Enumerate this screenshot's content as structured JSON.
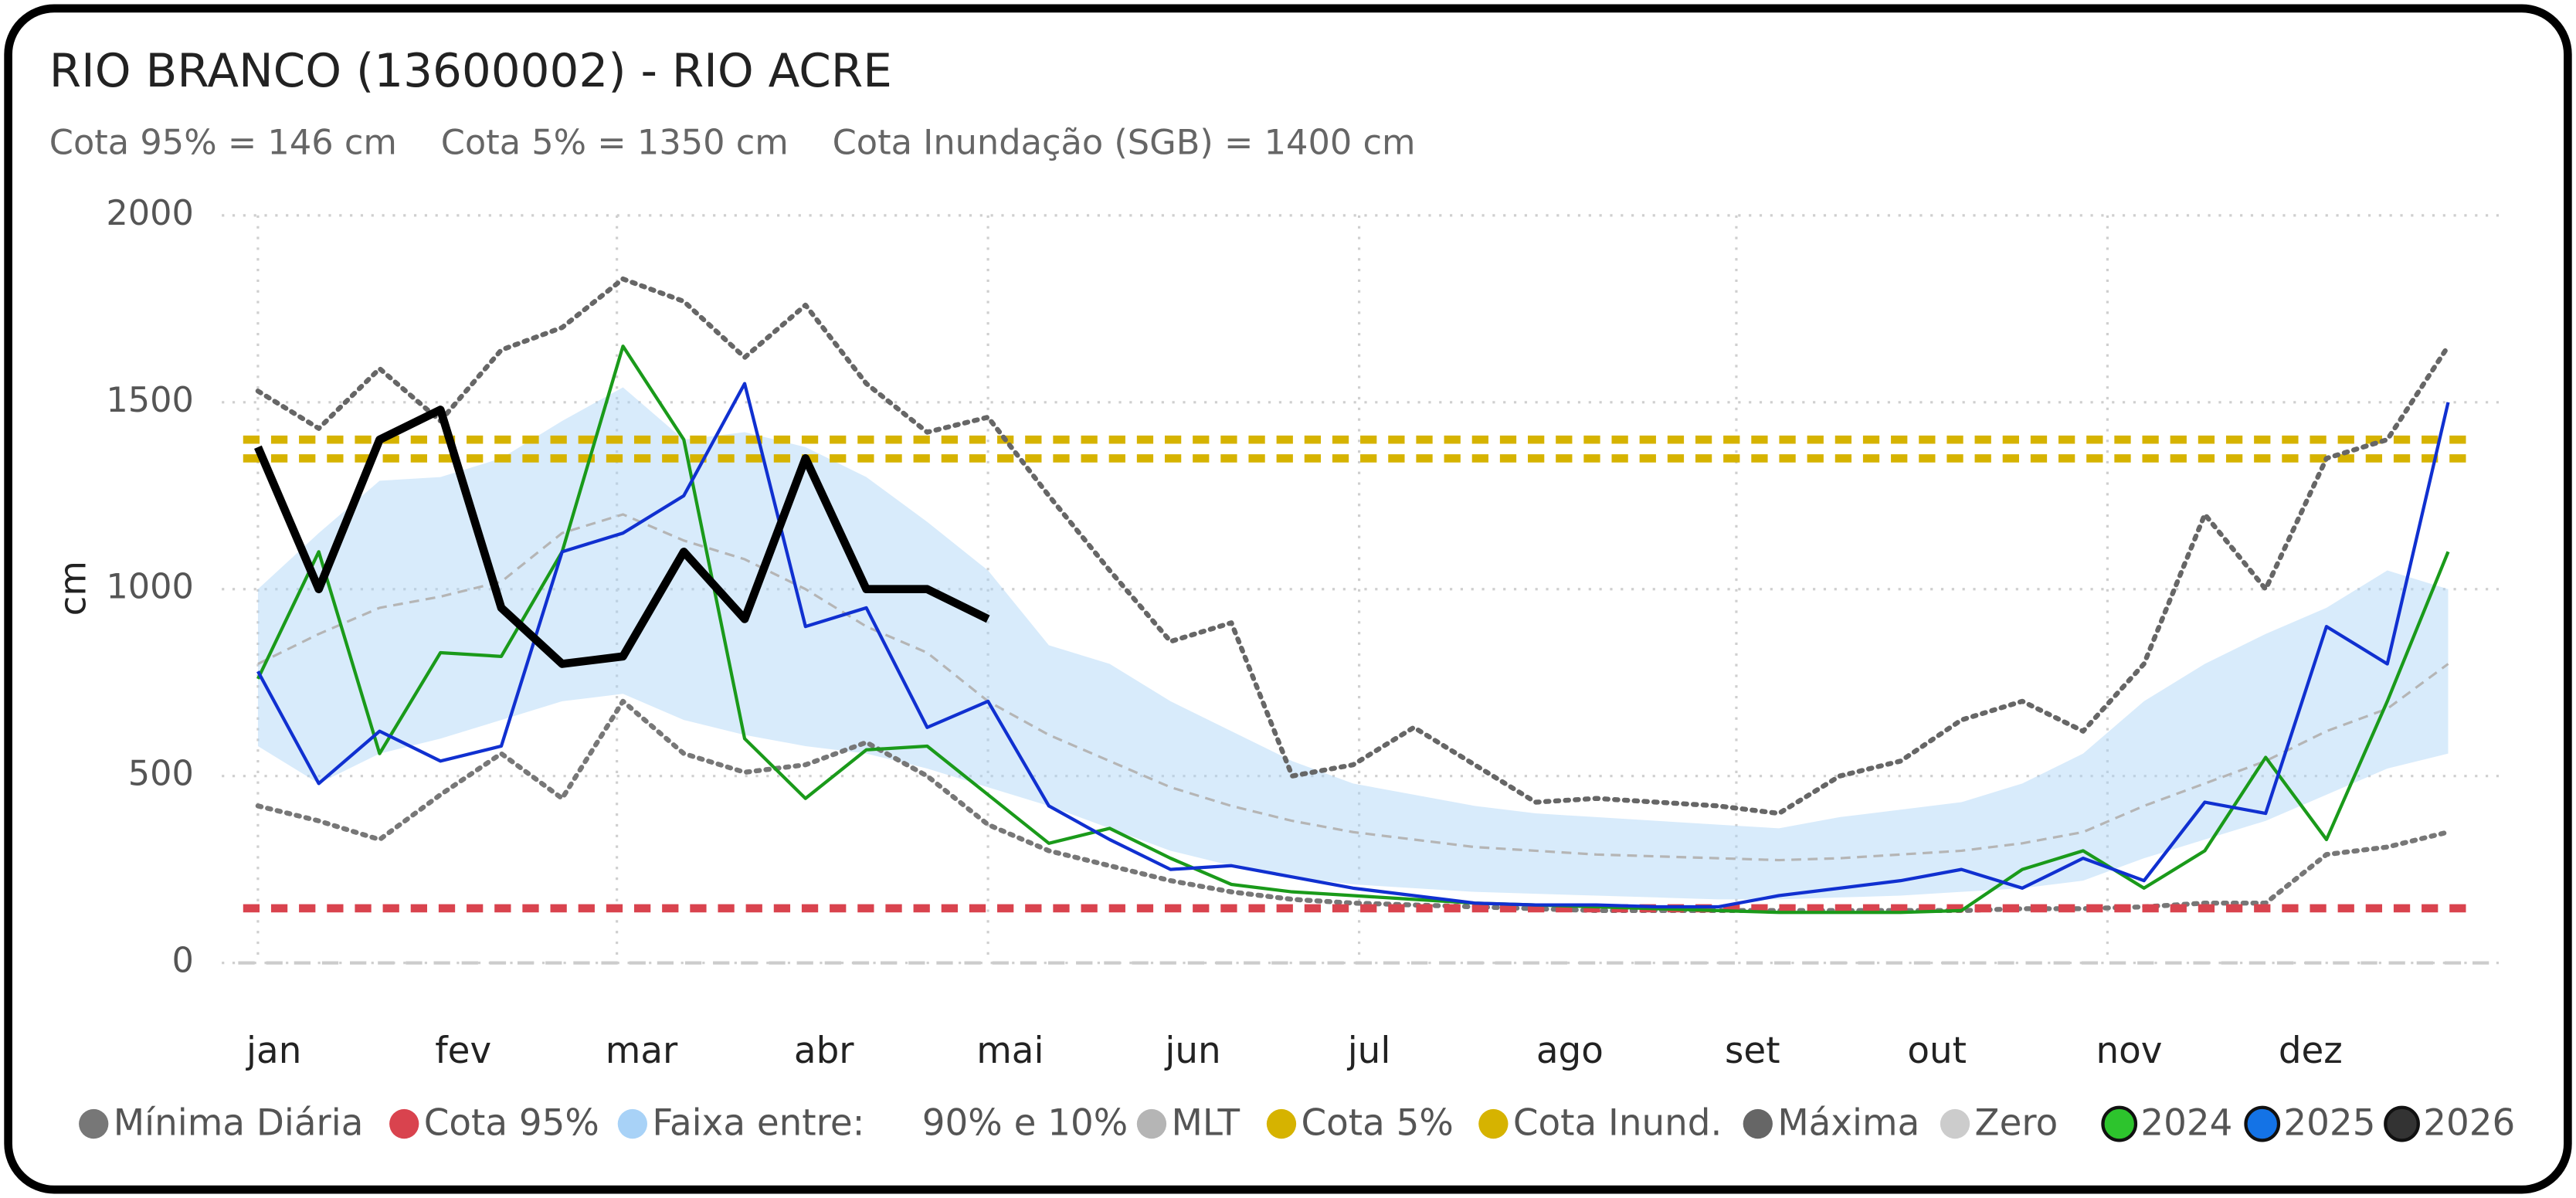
{
  "chart_data": {
    "type": "line",
    "title": "RIO BRANCO (13600002) - RIO ACRE",
    "subtitle": "Cota 95% = 146 cm    Cota 5% = 1350 cm    Cota Inundação (SGB) = 1400 cm",
    "ylabel": "cm",
    "ylim": [
      0,
      2000
    ],
    "yticks": [
      0,
      500,
      1000,
      1500,
      2000
    ],
    "xlim": [
      1,
      365
    ],
    "xticks": [
      {
        "value": 1,
        "label": "jan"
      },
      {
        "value": 32,
        "label": "fev"
      },
      {
        "value": 60,
        "label": "mar"
      },
      {
        "value": 91,
        "label": "abr"
      },
      {
        "value": 121,
        "label": "mai"
      },
      {
        "value": 152,
        "label": "jun"
      },
      {
        "value": 182,
        "label": "jul"
      },
      {
        "value": 213,
        "label": "ago"
      },
      {
        "value": 244,
        "label": "set"
      },
      {
        "value": 274,
        "label": "out"
      },
      {
        "value": 305,
        "label": "nov"
      },
      {
        "value": 335,
        "label": "dez"
      }
    ],
    "grid": true,
    "legend": "bottom",
    "x": [
      1,
      11,
      21,
      31,
      41,
      51,
      61,
      71,
      81,
      91,
      101,
      111,
      121,
      131,
      141,
      151,
      161,
      171,
      181,
      191,
      201,
      211,
      221,
      231,
      241,
      251,
      261,
      271,
      281,
      291,
      301,
      311,
      321,
      331,
      341,
      351,
      361
    ],
    "series": [
      {
        "name": "Mínima Diária",
        "kind": "line",
        "style": "dotted",
        "color": "#777777",
        "values": [
          420,
          380,
          330,
          450,
          560,
          440,
          700,
          560,
          510,
          530,
          590,
          500,
          370,
          300,
          260,
          220,
          190,
          170,
          160,
          155,
          150,
          145,
          140,
          140,
          140,
          140,
          140,
          140,
          140,
          145,
          145,
          150,
          160,
          160,
          290,
          310,
          350
        ]
      },
      {
        "name": "Cota 95%",
        "kind": "hline",
        "style": "dashed",
        "color": "#d9434e",
        "value": 146
      },
      {
        "name": "Faixa entre:     90% e 10%",
        "kind": "band",
        "color": "#a8d2f7",
        "upper": [
          1000,
          1150,
          1290,
          1300,
          1350,
          1450,
          1540,
          1400,
          1420,
          1380,
          1300,
          1180,
          1050,
          850,
          800,
          700,
          620,
          540,
          480,
          450,
          420,
          400,
          390,
          380,
          370,
          360,
          390,
          410,
          430,
          480,
          560,
          700,
          800,
          880,
          950,
          1050,
          1000
        ],
        "lower": [
          580,
          480,
          560,
          600,
          650,
          700,
          720,
          650,
          610,
          580,
          560,
          520,
          470,
          420,
          360,
          300,
          260,
          230,
          210,
          200,
          190,
          185,
          180,
          175,
          170,
          170,
          175,
          180,
          190,
          200,
          220,
          280,
          330,
          380,
          450,
          520,
          560
        ]
      },
      {
        "name": "MLT",
        "kind": "line",
        "style": "dashed",
        "color": "#b5b5b5",
        "values": [
          800,
          880,
          950,
          980,
          1020,
          1150,
          1200,
          1130,
          1080,
          1000,
          900,
          830,
          700,
          610,
          540,
          470,
          420,
          380,
          350,
          330,
          310,
          300,
          290,
          285,
          280,
          275,
          280,
          290,
          300,
          320,
          350,
          420,
          480,
          540,
          620,
          680,
          800
        ]
      },
      {
        "name": "Cota 5%",
        "kind": "hline",
        "style": "dashed",
        "color": "#d6b300",
        "value": 1350
      },
      {
        "name": "Cota Inund.",
        "kind": "hline",
        "style": "dashed",
        "color": "#d6b300",
        "value": 1400
      },
      {
        "name": "Máxima",
        "kind": "line",
        "style": "dotted",
        "color": "#666666",
        "values": [
          1530,
          1430,
          1590,
          1450,
          1640,
          1700,
          1830,
          1770,
          1620,
          1760,
          1550,
          1420,
          1460,
          1250,
          1050,
          860,
          910,
          500,
          530,
          630,
          530,
          430,
          440,
          430,
          420,
          400,
          500,
          540,
          650,
          700,
          620,
          800,
          1200,
          1000,
          1350,
          1400,
          1650
        ]
      },
      {
        "name": "Zero",
        "kind": "hline",
        "style": "dashed",
        "color": "#cccccc",
        "value": 0
      },
      {
        "name": "2024",
        "kind": "line",
        "style": "solid",
        "color": "#1a9a1a",
        "values": [
          760,
          1100,
          560,
          830,
          820,
          1100,
          1650,
          1400,
          600,
          440,
          570,
          580,
          450,
          320,
          360,
          280,
          210,
          190,
          180,
          170,
          160,
          155,
          150,
          145,
          140,
          135,
          135,
          135,
          140,
          250,
          300,
          200,
          300,
          550,
          330,
          700,
          1100
        ]
      },
      {
        "name": "2025",
        "kind": "line",
        "style": "solid",
        "color": "#1030d0",
        "values": [
          780,
          480,
          620,
          540,
          580,
          1100,
          1150,
          1250,
          1550,
          900,
          950,
          630,
          700,
          420,
          330,
          250,
          260,
          230,
          200,
          180,
          160,
          155,
          155,
          150,
          150,
          180,
          200,
          220,
          250,
          200,
          280,
          220,
          430,
          400,
          900,
          800,
          1500
        ]
      },
      {
        "name": "2026",
        "kind": "line",
        "style": "solid",
        "color": "#000000",
        "values": [
          1380,
          1000,
          1400,
          1480,
          950,
          800,
          820,
          1100,
          920,
          1350,
          1000,
          1000,
          920,
          null,
          null,
          null,
          null,
          null,
          null,
          null,
          null,
          null,
          null,
          null,
          null,
          null,
          null,
          null,
          null,
          null,
          null,
          null,
          null,
          null,
          null,
          null,
          null
        ]
      }
    ]
  }
}
